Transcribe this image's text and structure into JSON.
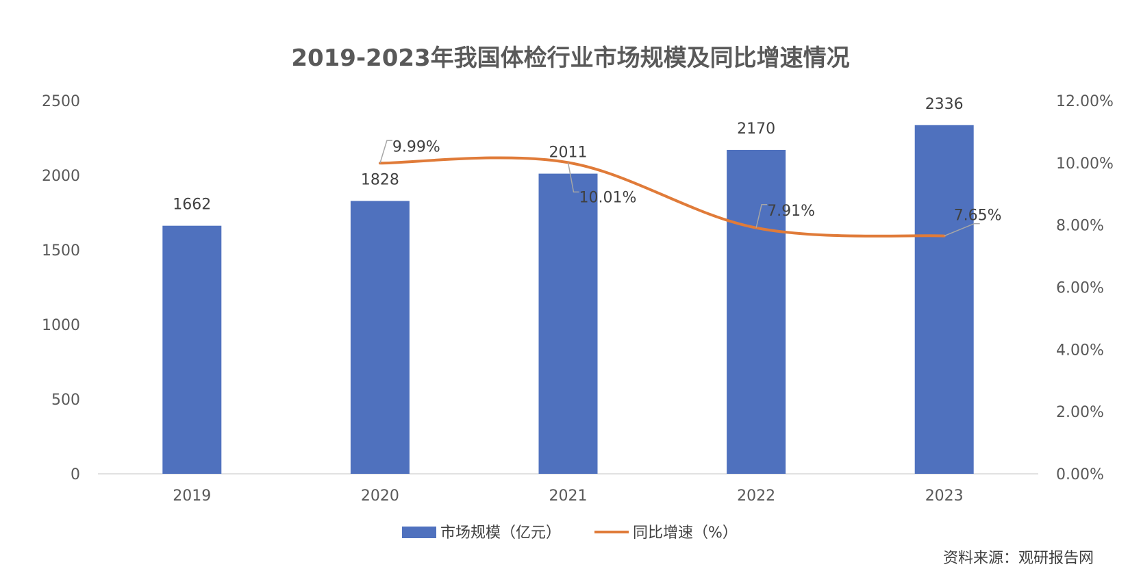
{
  "chart_data": {
    "type": "bar",
    "title": "2019-2023年我国体检行业市场规模及同比增速情况",
    "categories": [
      "2019",
      "2020",
      "2021",
      "2022",
      "2023"
    ],
    "series": [
      {
        "name": "市场规模（亿元）",
        "type": "bar",
        "axis": "left",
        "color": "#4F71BE",
        "values": [
          1662,
          1828,
          2011,
          2170,
          2336
        ],
        "labels": [
          "1662",
          "1828",
          "2011",
          "2170",
          "2336"
        ]
      },
      {
        "name": "同比增速（%）",
        "type": "line",
        "axis": "right",
        "color": "#E07B39",
        "values": [
          null,
          9.99,
          10.01,
          7.91,
          7.65
        ],
        "labels": [
          "",
          "9.99%",
          "10.01%",
          "7.91%",
          "7.65%"
        ]
      }
    ],
    "y_left": {
      "min": 0,
      "max": 2500,
      "ticks": [
        "0",
        "500",
        "1000",
        "1500",
        "2000",
        "2500"
      ]
    },
    "y_right": {
      "min": 0,
      "max": 12,
      "ticks": [
        "0.00%",
        "2.00%",
        "4.00%",
        "6.00%",
        "8.00%",
        "10.00%",
        "12.00%"
      ]
    },
    "grid": false,
    "legend": "bottom"
  },
  "source": "资料来源：观研报告网"
}
